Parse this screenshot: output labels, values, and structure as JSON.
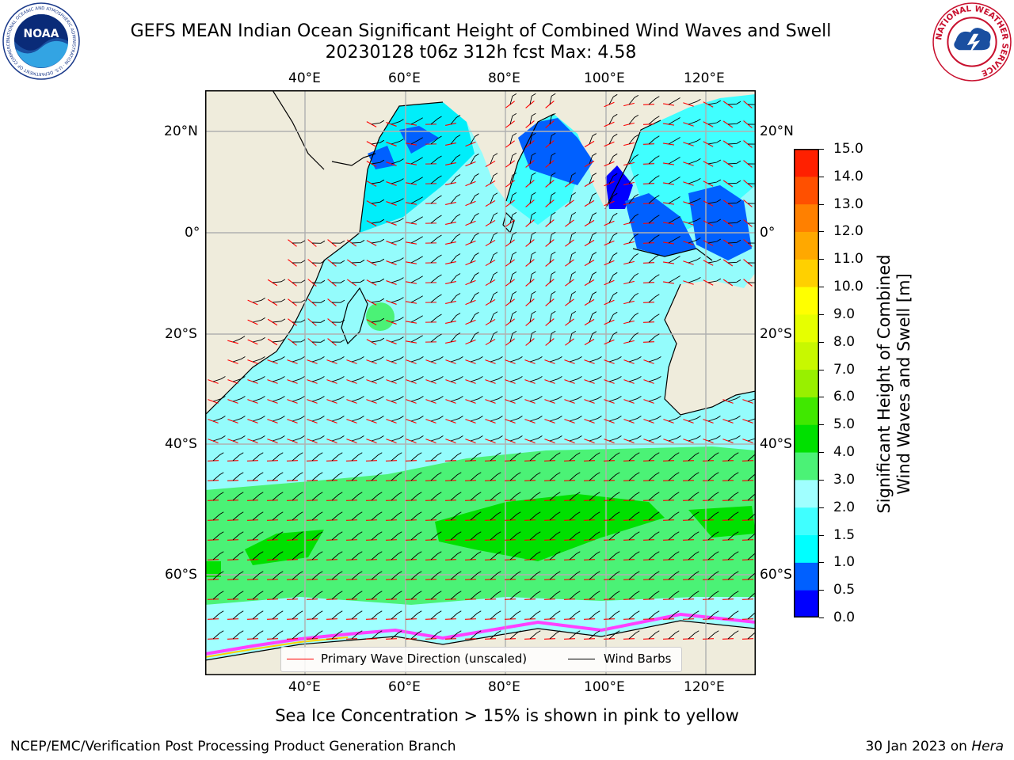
{
  "title": {
    "line1": "GEFS MEAN Indian Ocean Significant Height of Combined Wind Waves and Swell",
    "line2": "20230128 t06z 312h fcst   Max: 4.58"
  },
  "logos": {
    "left": {
      "name": "noaa-logo",
      "text": "NOAA",
      "ring_text": "NATIONAL OCEANIC AND ATMOSPHERIC ADMINISTRATION · U.S. DEPARTMENT OF COMMERCE"
    },
    "right": {
      "name": "nws-logo",
      "ring_text": "NATIONAL WEATHER SERVICE"
    }
  },
  "map": {
    "lon_ticks": [
      "40°E",
      "60°E",
      "80°E",
      "100°E",
      "120°E"
    ],
    "lat_ticks": [
      "20°N",
      "0°",
      "20°S",
      "40°S",
      "60°S"
    ],
    "lon_range": [
      20,
      130
    ],
    "lat_range": [
      28,
      -78
    ],
    "colors": {
      "land": "#efecdc",
      "ocean_1": "#00eefa",
      "ocean_2": "#94fcfc",
      "ocean_3": "#4bf276",
      "ocean_4": "#00e000",
      "grid": "#b0b0b0",
      "wave_arrow": "#ff0000",
      "barb": "#000000",
      "ice": "#ff40ff"
    }
  },
  "colorbar": {
    "ticks": [
      "15.0",
      "14.0",
      "13.0",
      "12.0",
      "11.0",
      "10.0",
      "9.0",
      "8.0",
      "7.0",
      "6.0",
      "5.0",
      "4.0",
      "3.0",
      "2.0",
      "1.5",
      "1.0",
      "0.5",
      "0.0"
    ],
    "colors": [
      "#0000ff",
      "#0060ff",
      "#00ffff",
      "#40ffff",
      "#a0ffff",
      "#4bf276",
      "#00e000",
      "#40e800",
      "#98f000",
      "#c8f800",
      "#e6ff00",
      "#ffff00",
      "#ffd000",
      "#ffa800",
      "#ff8000",
      "#ff5000",
      "#ff2000"
    ],
    "label_line1": "Significant Height of Combined",
    "label_line2": "Wind Waves and Swell [m]"
  },
  "legend": {
    "wave_label": "Primary Wave Direction (unscaled)",
    "barb_label": "Wind Barbs"
  },
  "footnote": "Sea Ice Concentration > 15% is shown in pink to yellow",
  "credit": "NCEP/EMC/Verification Post Processing Product Generation Branch",
  "date": {
    "prefix": "30 Jan 2023 on ",
    "machine": "Hera"
  }
}
